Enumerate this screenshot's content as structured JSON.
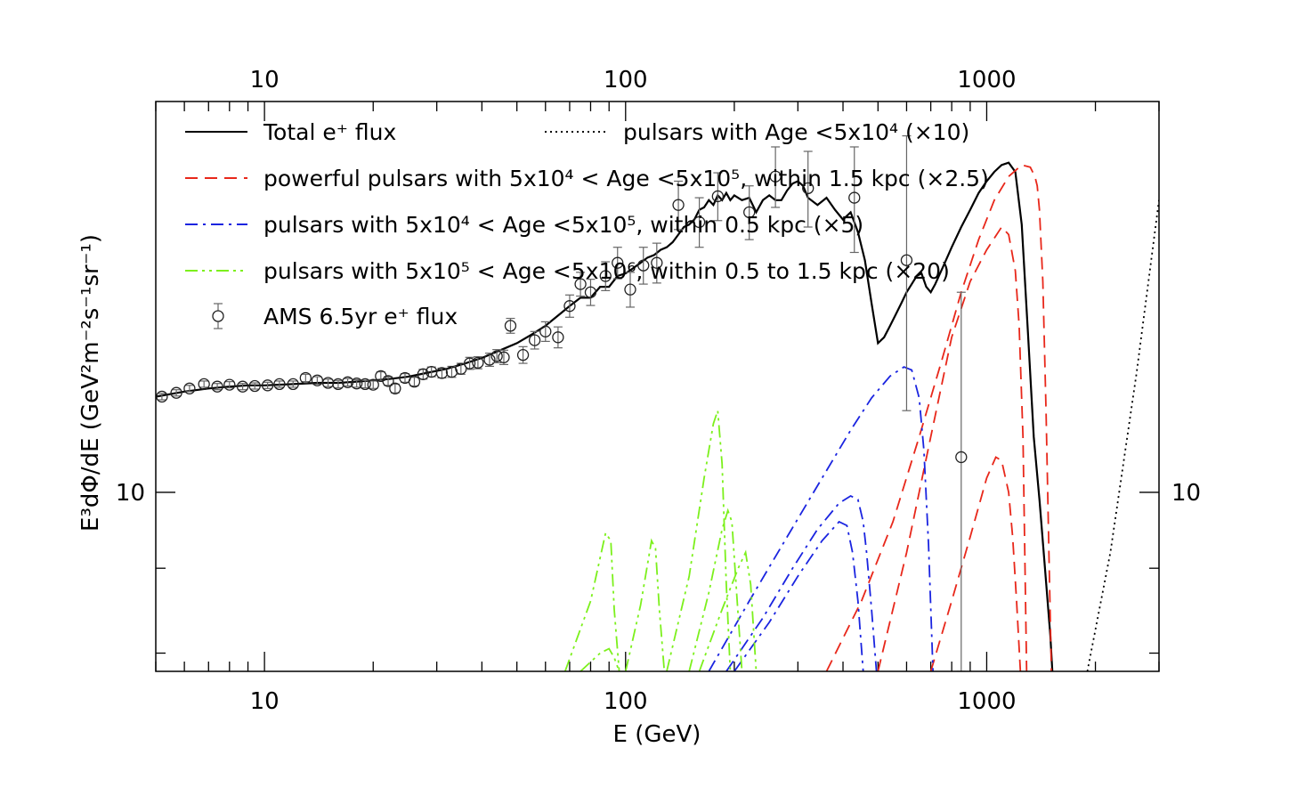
{
  "chart_data": {
    "type": "line",
    "title": "",
    "xlabel": "E (GeV)",
    "ylabel": "E³dΦ/dE (GeV²m⁻²s⁻¹sr⁻¹)",
    "xscale": "log",
    "yscale": "log",
    "xlim": [
      5,
      3000
    ],
    "ylim": [
      7.8,
      17.2
    ],
    "grid": false,
    "legend_position": "top-left inside",
    "x_ticks": [
      {
        "value": 10,
        "label": "10"
      },
      {
        "value": 100,
        "label": "100"
      },
      {
        "value": 1000,
        "label": "1000"
      }
    ],
    "top_x_ticks": [
      {
        "value": 10,
        "label": "10"
      },
      {
        "value": 100,
        "label": "100"
      },
      {
        "value": 1000,
        "label": "1000"
      }
    ],
    "y_ticks": [
      {
        "value": 10,
        "label": "10"
      }
    ],
    "right_y_ticks": [
      {
        "value": 10,
        "label": "10"
      }
    ],
    "series": [
      {
        "name": "Total e⁺ flux",
        "color": "#000000",
        "style": "solid",
        "x": [
          5,
          6,
          7,
          8,
          9,
          10,
          12,
          14,
          16,
          18,
          20,
          22,
          25,
          28,
          32,
          36,
          40,
          45,
          50,
          55,
          60,
          65,
          70,
          75,
          80,
          85,
          90,
          95,
          100,
          105,
          110,
          115,
          120,
          125,
          130,
          135,
          140,
          145,
          150,
          155,
          160,
          165,
          170,
          175,
          180,
          185,
          190,
          195,
          200,
          210,
          220,
          230,
          240,
          250,
          260,
          270,
          280,
          290,
          300,
          310,
          320,
          340,
          360,
          380,
          400,
          420,
          440,
          460,
          480,
          500,
          520,
          540,
          560,
          580,
          600,
          620,
          640,
          660,
          680,
          700,
          720,
          760,
          800,
          850,
          900,
          950,
          1000,
          1050,
          1100,
          1150,
          1200,
          1250,
          1300,
          1350,
          1400,
          1450,
          1500,
          1520
        ],
        "y": [
          11.42,
          11.5,
          11.55,
          11.58,
          11.6,
          11.6,
          11.62,
          11.64,
          11.64,
          11.66,
          11.68,
          11.7,
          11.74,
          11.8,
          11.87,
          11.96,
          12.05,
          12.18,
          12.3,
          12.45,
          12.6,
          12.78,
          12.95,
          13.1,
          13.1,
          13.3,
          13.3,
          13.5,
          13.55,
          13.65,
          13.75,
          13.85,
          13.9,
          14.0,
          14.05,
          14.15,
          14.3,
          14.45,
          14.5,
          14.6,
          14.8,
          14.85,
          15.0,
          14.9,
          15.1,
          15.0,
          15.15,
          15.0,
          15.1,
          15.0,
          15.05,
          14.75,
          15.0,
          15.1,
          15.0,
          15.0,
          15.2,
          15.35,
          15.4,
          15.3,
          15.05,
          14.9,
          15.05,
          14.8,
          14.6,
          14.75,
          14.35,
          13.8,
          13.0,
          12.3,
          12.4,
          12.6,
          12.8,
          13.0,
          13.2,
          13.35,
          13.5,
          13.55,
          13.3,
          13.2,
          13.35,
          13.7,
          14.05,
          14.45,
          14.8,
          15.15,
          15.4,
          15.6,
          15.75,
          15.8,
          15.6,
          14.5,
          12.5,
          10.8,
          9.9,
          9.0,
          8.2,
          7.8
        ]
      },
      {
        "name": "pulsars with Age <5x10⁴ (×10)",
        "color": "#000000",
        "style": "dotted",
        "x": [
          1900,
          2200,
          2600,
          3000
        ],
        "y": [
          7.8,
          9.2,
          11.8,
          15.0
        ]
      },
      {
        "name": "powerful pulsars with 5x10⁴ < Age <5x10⁵, within 1.5 kpc (×2.5)",
        "color": "#e8271a",
        "style": "dashed",
        "curves": [
          {
            "x": [
              360,
              450,
              550,
              650,
              750,
              850,
              950,
              1050,
              1150,
              1250,
              1320,
              1360,
              1380,
              1400,
              1430,
              1460,
              1490,
              1510
            ],
            "y": [
              7.8,
              8.6,
              9.6,
              10.8,
              12.0,
              13.2,
              14.2,
              15.0,
              15.5,
              15.75,
              15.7,
              15.5,
              15.3,
              14.8,
              13.4,
              11.2,
              9.0,
              7.8
            ]
          },
          {
            "x": [
              500,
              600,
              700,
              800,
              900,
              1000,
              1100,
              1150,
              1200,
              1230,
              1260,
              1290
            ],
            "y": [
              7.8,
              9.2,
              10.8,
              12.4,
              13.4,
              14.0,
              14.45,
              14.3,
              13.6,
              12.6,
              10.8,
              7.8
            ]
          },
          {
            "x": [
              700,
              800,
              900,
              1000,
              1060,
              1100,
              1150,
              1180,
              1210,
              1240
            ],
            "y": [
              7.8,
              8.6,
              9.4,
              10.2,
              10.5,
              10.45,
              10.0,
              9.4,
              8.6,
              7.8
            ]
          }
        ]
      },
      {
        "name": "pulsars with 5x10⁴ < Age <5x10⁵, within 0.5 kpc (×5)",
        "color": "#1a24e0",
        "style": "dashdot",
        "curves": [
          {
            "x": [
              170,
              220,
              280,
              350,
              420,
              480,
              540,
              590,
              620,
              650,
              670,
              690,
              710
            ],
            "y": [
              7.8,
              8.6,
              9.4,
              10.2,
              10.9,
              11.4,
              11.75,
              11.9,
              11.85,
              11.4,
              10.6,
              9.3,
              7.8
            ]
          },
          {
            "x": [
              190,
              240,
              290,
              340,
              390,
              420,
              440,
              455,
              465,
              480,
              495
            ],
            "y": [
              7.8,
              8.4,
              9.0,
              9.5,
              9.85,
              9.95,
              9.9,
              9.6,
              9.2,
              8.5,
              7.8
            ]
          },
          {
            "x": [
              200,
              250,
              300,
              350,
              390,
              410,
              425,
              440,
              455
            ],
            "y": [
              7.8,
              8.35,
              8.9,
              9.35,
              9.6,
              9.55,
              9.2,
              8.6,
              7.8
            ]
          }
        ]
      },
      {
        "name": "pulsars with 5x10⁵ < Age <5x10⁶, within 0.5 to 1.5 kpc (×20)",
        "color": "#7cf01c",
        "style": "dashdotdot",
        "curves": [
          {
            "x": [
              68,
              80,
              88,
              91,
              93,
              96
            ],
            "y": [
              7.8,
              8.6,
              9.45,
              9.35,
              8.5,
              7.8
            ]
          },
          {
            "x": [
              100,
              110,
              118,
              121,
              124,
              128
            ],
            "y": [
              7.8,
              8.55,
              9.35,
              9.25,
              8.5,
              7.8
            ]
          },
          {
            "x": [
              130,
              150,
              165,
              175,
              180,
              185,
              190,
              195
            ],
            "y": [
              7.8,
              8.9,
              10.2,
              11.0,
              11.2,
              10.4,
              8.8,
              7.8
            ]
          },
          {
            "x": [
              150,
              170,
              185,
              192,
              197,
              203,
              210
            ],
            "y": [
              7.8,
              8.7,
              9.5,
              9.75,
              9.6,
              8.7,
              7.8
            ]
          },
          {
            "x": [
              160,
              185,
              205,
              215,
              222,
              230
            ],
            "y": [
              7.8,
              8.5,
              9.0,
              9.2,
              8.8,
              7.8
            ]
          },
          {
            "x": [
              75,
              85,
              90,
              93,
              96
            ],
            "y": [
              7.8,
              8.0,
              8.05,
              7.95,
              7.8
            ]
          }
        ]
      },
      {
        "name": "AMS 6.5yr e⁺ flux",
        "color": "#000000",
        "style": "points-errorbars",
        "points": [
          {
            "x": 5.2,
            "y": 11.42,
            "err": 0.05
          },
          {
            "x": 5.7,
            "y": 11.48,
            "err": 0.05
          },
          {
            "x": 6.2,
            "y": 11.55,
            "err": 0.05
          },
          {
            "x": 6.8,
            "y": 11.62,
            "err": 0.05
          },
          {
            "x": 7.4,
            "y": 11.58,
            "err": 0.05
          },
          {
            "x": 8.0,
            "y": 11.61,
            "err": 0.05
          },
          {
            "x": 8.7,
            "y": 11.58,
            "err": 0.05
          },
          {
            "x": 9.4,
            "y": 11.59,
            "err": 0.05
          },
          {
            "x": 10.2,
            "y": 11.6,
            "err": 0.05
          },
          {
            "x": 11.0,
            "y": 11.62,
            "err": 0.05
          },
          {
            "x": 12.0,
            "y": 11.62,
            "err": 0.05
          },
          {
            "x": 13.0,
            "y": 11.72,
            "err": 0.06
          },
          {
            "x": 14.0,
            "y": 11.68,
            "err": 0.06
          },
          {
            "x": 15.0,
            "y": 11.64,
            "err": 0.06
          },
          {
            "x": 16.0,
            "y": 11.62,
            "err": 0.06
          },
          {
            "x": 17.0,
            "y": 11.65,
            "err": 0.06
          },
          {
            "x": 18.0,
            "y": 11.63,
            "err": 0.06
          },
          {
            "x": 19.0,
            "y": 11.62,
            "err": 0.06
          },
          {
            "x": 20.0,
            "y": 11.61,
            "err": 0.06
          },
          {
            "x": 21.0,
            "y": 11.75,
            "err": 0.07
          },
          {
            "x": 22.0,
            "y": 11.67,
            "err": 0.07
          },
          {
            "x": 23.0,
            "y": 11.55,
            "err": 0.07
          },
          {
            "x": 24.5,
            "y": 11.72,
            "err": 0.07
          },
          {
            "x": 26.0,
            "y": 11.66,
            "err": 0.07
          },
          {
            "x": 27.5,
            "y": 11.78,
            "err": 0.08
          },
          {
            "x": 29.0,
            "y": 11.82,
            "err": 0.08
          },
          {
            "x": 31.0,
            "y": 11.8,
            "err": 0.08
          },
          {
            "x": 33.0,
            "y": 11.82,
            "err": 0.09
          },
          {
            "x": 35.0,
            "y": 11.87,
            "err": 0.09
          },
          {
            "x": 37.0,
            "y": 11.96,
            "err": 0.1
          },
          {
            "x": 39.0,
            "y": 11.97,
            "err": 0.1
          },
          {
            "x": 42.0,
            "y": 12.02,
            "err": 0.11
          },
          {
            "x": 44.0,
            "y": 12.08,
            "err": 0.11
          },
          {
            "x": 46.0,
            "y": 12.06,
            "err": 0.12
          },
          {
            "x": 48.0,
            "y": 12.6,
            "err": 0.13
          },
          {
            "x": 52.0,
            "y": 12.1,
            "err": 0.14
          },
          {
            "x": 56.0,
            "y": 12.35,
            "err": 0.15
          },
          {
            "x": 60.0,
            "y": 12.5,
            "err": 0.17
          },
          {
            "x": 65.0,
            "y": 12.4,
            "err": 0.18
          },
          {
            "x": 70.0,
            "y": 12.95,
            "err": 0.2
          },
          {
            "x": 75.0,
            "y": 13.35,
            "err": 0.22
          },
          {
            "x": 80.0,
            "y": 13.2,
            "err": 0.24
          },
          {
            "x": 88.0,
            "y": 13.5,
            "err": 0.27
          },
          {
            "x": 95.0,
            "y": 13.75,
            "err": 0.3
          },
          {
            "x": 103.0,
            "y": 13.25,
            "err": 0.32
          },
          {
            "x": 112.0,
            "y": 13.7,
            "err": 0.35
          },
          {
            "x": 122.0,
            "y": 13.75,
            "err": 0.38
          },
          {
            "x": 140.0,
            "y": 14.9,
            "err": 0.5
          },
          {
            "x": 160.0,
            "y": 14.55,
            "err": 0.5
          },
          {
            "x": 180.0,
            "y": 15.08,
            "err": 0.5
          },
          {
            "x": 220.0,
            "y": 14.75,
            "err": 0.55
          },
          {
            "x": 260.0,
            "y": 15.5,
            "err": 0.65
          },
          {
            "x": 320.0,
            "y": 15.25,
            "err": 0.8
          },
          {
            "x": 430.0,
            "y": 15.05,
            "err": 1.1
          },
          {
            "x": 600.0,
            "y": 13.8,
            "err": 2.6
          },
          {
            "x": 850.0,
            "y": 10.5,
            "err": 2.7
          }
        ]
      }
    ]
  }
}
